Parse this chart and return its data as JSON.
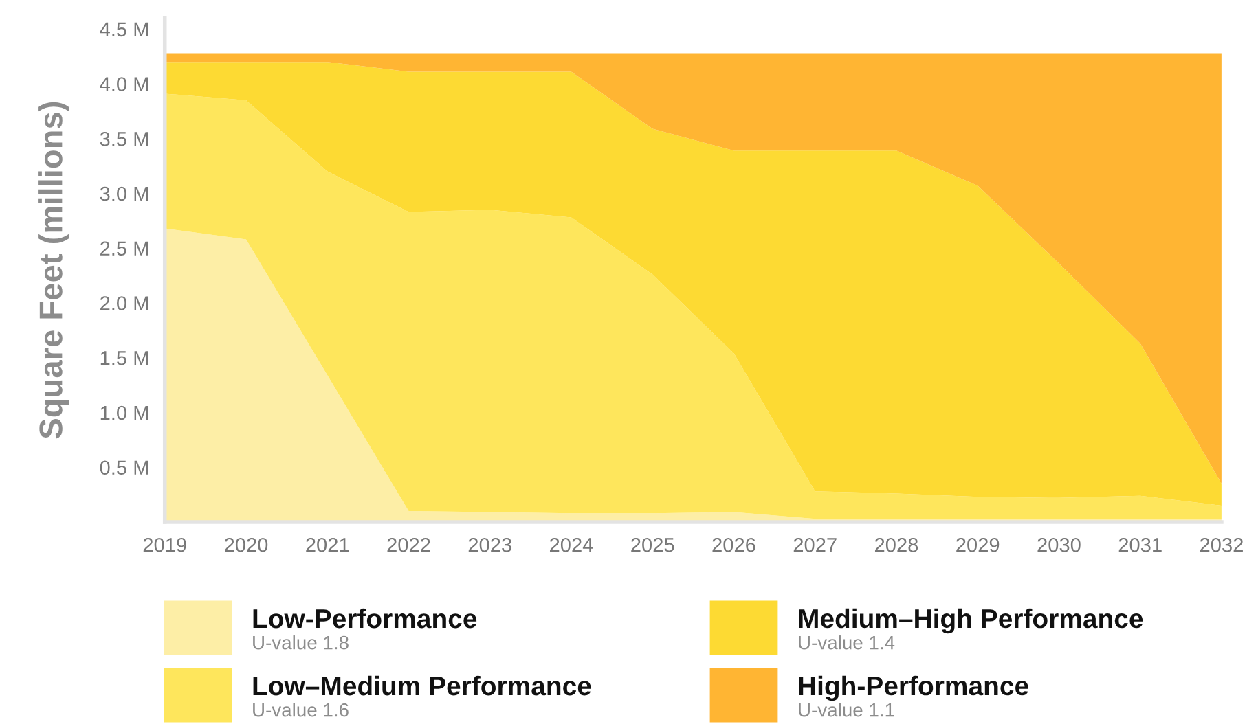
{
  "chart_data": {
    "type": "area",
    "stacked": true,
    "ylabel": "Square Feet (millions)",
    "x": [
      2019,
      2020,
      2021,
      2022,
      2023,
      2024,
      2025,
      2026,
      2027,
      2028,
      2029,
      2030,
      2031,
      2032
    ],
    "series": [
      {
        "name": "Low-Performance",
        "color": "#fdeea6",
        "values": [
          2.68,
          2.58,
          1.34,
          0.1,
          0.09,
          0.08,
          0.08,
          0.09,
          0.03,
          0.03,
          0.03,
          0.03,
          0.03,
          0.03
        ]
      },
      {
        "name": "Low–Medium Performance",
        "color": "#fee65c",
        "values": [
          1.23,
          1.27,
          1.86,
          2.73,
          2.76,
          2.7,
          2.18,
          1.45,
          0.25,
          0.23,
          0.2,
          0.19,
          0.21,
          0.12
        ]
      },
      {
        "name": "Medium–High Performance",
        "color": "#fdda33",
        "values": [
          0.29,
          0.35,
          1.0,
          1.28,
          1.26,
          1.33,
          1.33,
          1.85,
          3.11,
          3.13,
          2.84,
          2.14,
          1.39,
          0.2
        ]
      },
      {
        "name": "High-Performance",
        "color": "#ffb533",
        "values": [
          0.08,
          0.08,
          0.08,
          0.17,
          0.17,
          0.17,
          0.69,
          0.89,
          0.89,
          0.89,
          1.21,
          1.92,
          2.65,
          3.93
        ]
      }
    ],
    "annotations": [
      "U-value 1.8",
      "U-value 1.6",
      "U-value 1.4",
      "U-value 1.1"
    ],
    "xlim": [
      2019,
      2032
    ],
    "xticks": [
      2019,
      2020,
      2021,
      2022,
      2023,
      2024,
      2025,
      2026,
      2027,
      2028,
      2029,
      2030,
      2031,
      2032
    ],
    "ylim": [
      0,
      4.6
    ],
    "yticks": [
      {
        "value": 0.5,
        "label": "0.5 M"
      },
      {
        "value": 1.0,
        "label": "1.0 M"
      },
      {
        "value": 1.5,
        "label": "1.5 M"
      },
      {
        "value": 2.0,
        "label": "2.0 M"
      },
      {
        "value": 2.5,
        "label": "2.5 M"
      },
      {
        "value": 3.0,
        "label": "3.0 M"
      },
      {
        "value": 3.5,
        "label": "3.5 M"
      },
      {
        "value": 4.0,
        "label": "4.0 M"
      },
      {
        "value": 4.5,
        "label": "4.5 M"
      }
    ],
    "grid": false,
    "legend": "bottom"
  }
}
